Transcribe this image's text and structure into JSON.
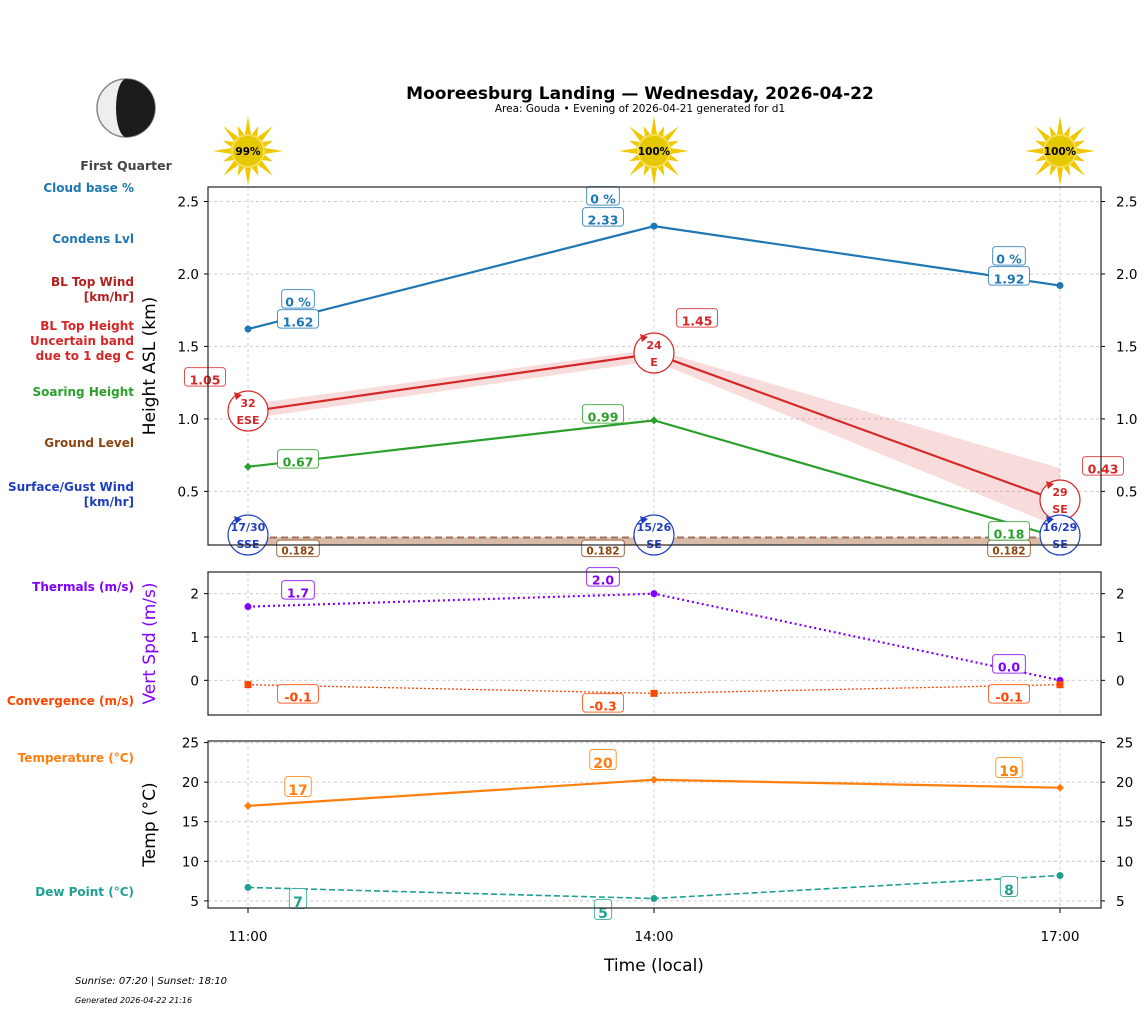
{
  "title": "Mooreesburg Landing — Wednesday, 2026-04-22",
  "subtitle": "Area: Gouda • Evening of 2026-04-21 generated for d1",
  "moon": {
    "phase": "First Quarter"
  },
  "sun_pct": [
    "99%",
    "100%",
    "100%"
  ],
  "footer": {
    "sun": "Sunrise: 07:20 | Sunset: 18:10",
    "generated": "Generated 2026-04-22 21:16"
  },
  "side_labels": {
    "cloud": "Cloud base %",
    "condens": "Condens Lvl",
    "bl_wind": [
      "BL Top Wind",
      "[km/hr]"
    ],
    "bl_height": [
      "BL Top Height",
      "Uncertain band",
      "due to 1 deg C"
    ],
    "soaring": "Soaring Height",
    "ground": "Ground Level",
    "surface": [
      "Surface/Gust Wind",
      "[km/hr]"
    ],
    "thermals": "Thermals (m/s)",
    "convergence": "Convergence (m/s)",
    "temperature": "Temperature (°C)",
    "dewpoint": "Dew Point (°C)"
  },
  "colors": {
    "cloud": "#1f77b4",
    "bl": "#d62728",
    "bl_wind": "#b22222",
    "soaring": "#2ca02c",
    "ground": "#8b4513",
    "surface": "#1f3fbf",
    "thermal": "#8000ff",
    "conv": "#ff4500",
    "temp": "#ff7f0e",
    "dew": "#20a090"
  },
  "chart_data": [
    {
      "type": "line",
      "ylabel": "Height ASL (km)",
      "x": [
        "11:00",
        "14:00",
        "17:00"
      ],
      "ylim": [
        0.13,
        2.6
      ],
      "yticks": [
        "0.5",
        "1.0",
        "1.5",
        "2.0",
        "2.5"
      ],
      "grid": true,
      "series": [
        {
          "key": "condens",
          "values": [
            1.62,
            2.33,
            1.92
          ],
          "labels": [
            "1.62",
            "2.33",
            "1.92"
          ],
          "cloud_pct": [
            "0 %",
            "0 %",
            "0 %"
          ]
        },
        {
          "key": "bl_top",
          "values": [
            1.05,
            1.45,
            0.43
          ],
          "labels": [
            "1.05",
            "1.45",
            "0.43"
          ],
          "band_upper": [
            1.1,
            1.48,
            0.66
          ],
          "band_lower": [
            1.0,
            1.4,
            0.25
          ],
          "wind": [
            {
              "speed": "32",
              "dir": "ESE"
            },
            {
              "speed": "24",
              "dir": "E"
            },
            {
              "speed": "29",
              "dir": "SE"
            }
          ]
        },
        {
          "key": "soaring",
          "values": [
            0.67,
            0.99,
            0.18
          ],
          "labels": [
            "0.67",
            "0.99",
            "0.18"
          ]
        },
        {
          "key": "ground",
          "values": [
            0.182,
            0.182,
            0.182
          ],
          "labels": [
            "0.182",
            "0.182",
            "0.182"
          ]
        },
        {
          "key": "surface_wind",
          "wind": [
            {
              "speed": "17/30",
              "dir": "SSE"
            },
            {
              "speed": "15/26",
              "dir": "SE"
            },
            {
              "speed": "16/29",
              "dir": "SE"
            }
          ]
        }
      ]
    },
    {
      "type": "line",
      "ylabel": "Vert Spd (m/s)",
      "x": [
        "11:00",
        "14:00",
        "17:00"
      ],
      "ylim": [
        -0.8,
        2.5
      ],
      "yticks": [
        "0",
        "1",
        "2"
      ],
      "series": [
        {
          "key": "thermals",
          "values": [
            1.7,
            2.0,
            0.0
          ],
          "labels": [
            "1.7",
            "2.0",
            "0.0"
          ]
        },
        {
          "key": "convergence",
          "values": [
            -0.1,
            -0.3,
            -0.1
          ],
          "labels": [
            "-0.1",
            "-0.3",
            "-0.1"
          ]
        }
      ]
    },
    {
      "type": "line",
      "ylabel": "Temp (°C)",
      "xlabel": "Time (local)",
      "x": [
        "11:00",
        "14:00",
        "17:00"
      ],
      "ylim": [
        4.1,
        25.2
      ],
      "yticks": [
        "5",
        "10",
        "15",
        "20",
        "25"
      ],
      "series": [
        {
          "key": "temperature",
          "values": [
            17.0,
            20.3,
            19.3
          ],
          "labels": [
            "17",
            "20",
            "19"
          ]
        },
        {
          "key": "dewpoint",
          "values": [
            6.7,
            5.3,
            8.2
          ],
          "labels": [
            "7",
            "5",
            "8"
          ]
        }
      ]
    }
  ]
}
